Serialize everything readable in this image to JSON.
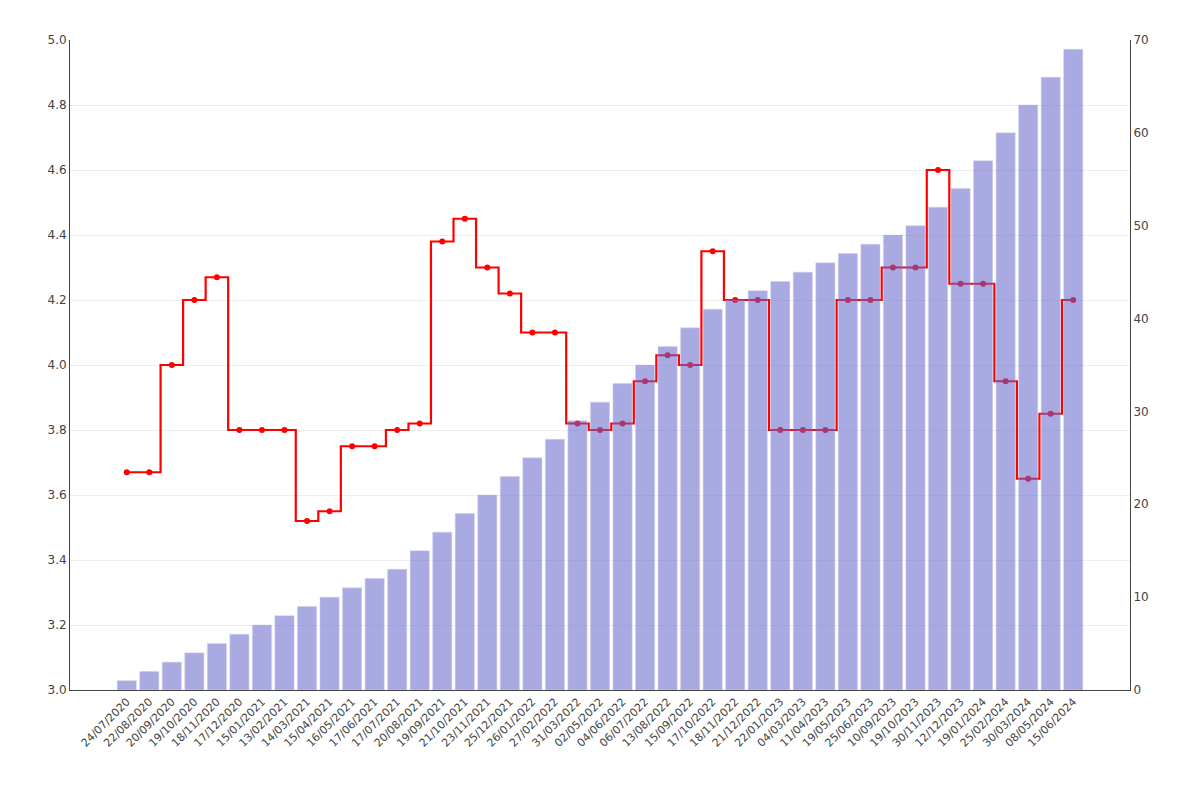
{
  "chart_data": {
    "type": "bar",
    "categories": [
      "24/07/2020",
      "22/08/2020",
      "20/09/2020",
      "19/10/2020",
      "18/11/2020",
      "17/12/2020",
      "15/01/2021",
      "13/02/2021",
      "14/03/2021",
      "15/04/2021",
      "16/05/2021",
      "17/06/2021",
      "17/07/2021",
      "20/08/2021",
      "19/09/2021",
      "21/10/2021",
      "23/11/2021",
      "25/12/2021",
      "26/01/2022",
      "27/02/2022",
      "31/03/2022",
      "02/05/2022",
      "04/06/2022",
      "06/07/2022",
      "13/08/2022",
      "15/09/2022",
      "17/10/2022",
      "18/11/2022",
      "21/12/2022",
      "22/01/2023",
      "04/03/2023",
      "11/04/2023",
      "19/05/2023",
      "25/06/2023",
      "10/09/2023",
      "19/10/2023",
      "30/11/2023",
      "12/12/2023",
      "19/01/2024",
      "25/02/2024",
      "30/03/2024",
      "08/05/2024",
      "15/06/2024"
    ],
    "series": [
      {
        "type": "bar",
        "axis": "y2",
        "color": "#6666cc",
        "values": [
          1,
          2,
          3,
          4,
          5,
          6,
          7,
          8,
          9,
          10,
          11,
          12,
          13,
          15,
          17,
          19,
          21,
          23,
          25,
          27,
          29,
          31,
          33,
          35,
          37,
          39,
          41,
          42,
          43,
          44,
          45,
          46,
          47,
          48,
          49,
          50,
          52,
          54,
          57,
          60,
          63,
          66,
          69
        ]
      },
      {
        "type": "line",
        "color": "#ff0000",
        "marker": "circle",
        "line_style": "step",
        "values": [
          3.67,
          3.67,
          4.0,
          4.2,
          4.27,
          3.8,
          3.8,
          3.8,
          3.52,
          3.55,
          3.75,
          3.75,
          3.8,
          3.82,
          4.38,
          4.45,
          4.3,
          4.22,
          4.1,
          4.1,
          3.82,
          3.8,
          3.82,
          3.95,
          4.03,
          4.0,
          4.35,
          4.2,
          4.2,
          3.8,
          3.8,
          3.8,
          4.2,
          4.2,
          4.3,
          4.3,
          4.6,
          4.25,
          4.25,
          3.95,
          3.65,
          3.85,
          4.2
        ]
      }
    ],
    "ylim": [
      3.0,
      5.0
    ],
    "yticks": [
      {
        "value": 3.0,
        "label": "3.0"
      },
      3.2,
      3.4,
      3.6,
      3.8,
      {
        "value": 4.0,
        "label": "4.0"
      },
      4.2,
      4.4,
      4.6,
      4.8,
      {
        "value": 5.0,
        "label": "5.0"
      }
    ],
    "y2lim": [
      0,
      70
    ],
    "y2ticks": [
      0,
      10,
      20,
      30,
      40,
      50,
      60,
      70
    ],
    "grid": true
  }
}
